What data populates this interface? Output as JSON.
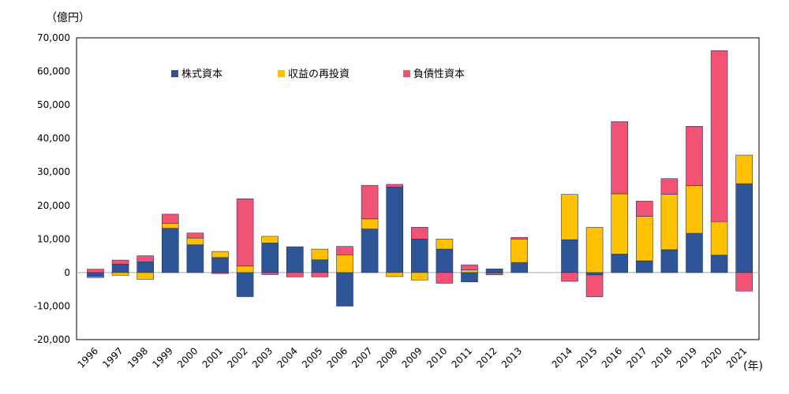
{
  "chart_data": {
    "type": "bar",
    "stacked": true,
    "y_unit_label": "（億円）",
    "x_unit_label": "(年)",
    "ylim": [
      -20000,
      70000
    ],
    "y_ticks": [
      "-20,000",
      "-10,000",
      "0",
      "10,000",
      "20,000",
      "30,000",
      "40,000",
      "50,000",
      "60,000",
      "70,000"
    ],
    "grid": false,
    "legend_position": "top-left",
    "categories": [
      "1996",
      "1997",
      "1998",
      "1999",
      "2000",
      "2001",
      "2002",
      "2003",
      "2004",
      "2005",
      "2006",
      "2007",
      "2008",
      "2009",
      "2010",
      "2011",
      "2012",
      "2013",
      "2014",
      "2015",
      "2016",
      "2017",
      "2018",
      "2019",
      "2020",
      "2021"
    ],
    "series": [
      {
        "name": "株式資本",
        "color": "#2E5597",
        "values": [
          -1200,
          2500,
          3200,
          13200,
          8300,
          4500,
          -7200,
          8800,
          7700,
          3800,
          -10000,
          13000,
          25500,
          10000,
          7000,
          -2800,
          1100,
          3000,
          9800,
          -700,
          5500,
          3500,
          6800,
          11700,
          5200,
          26500
        ]
      },
      {
        "name": "収益の再投資",
        "color": "#FFC000",
        "values": [
          -300,
          -800,
          -2000,
          1500,
          2000,
          1800,
          2000,
          2000,
          0,
          3200,
          5300,
          3000,
          -1200,
          -2200,
          3000,
          800,
          -200,
          7000,
          13500,
          13500,
          18000,
          13300,
          16500,
          14200,
          10000,
          8500
        ]
      },
      {
        "name": "負債性資本",
        "color": "#F25274",
        "values": [
          1000,
          1200,
          1800,
          2700,
          1500,
          -300,
          20000,
          -600,
          -1300,
          -1300,
          2500,
          10000,
          800,
          3500,
          -3200,
          1500,
          -500,
          500,
          -2600,
          -6500,
          21500,
          4500,
          4700,
          17700,
          51000,
          -5500
        ]
      }
    ]
  }
}
